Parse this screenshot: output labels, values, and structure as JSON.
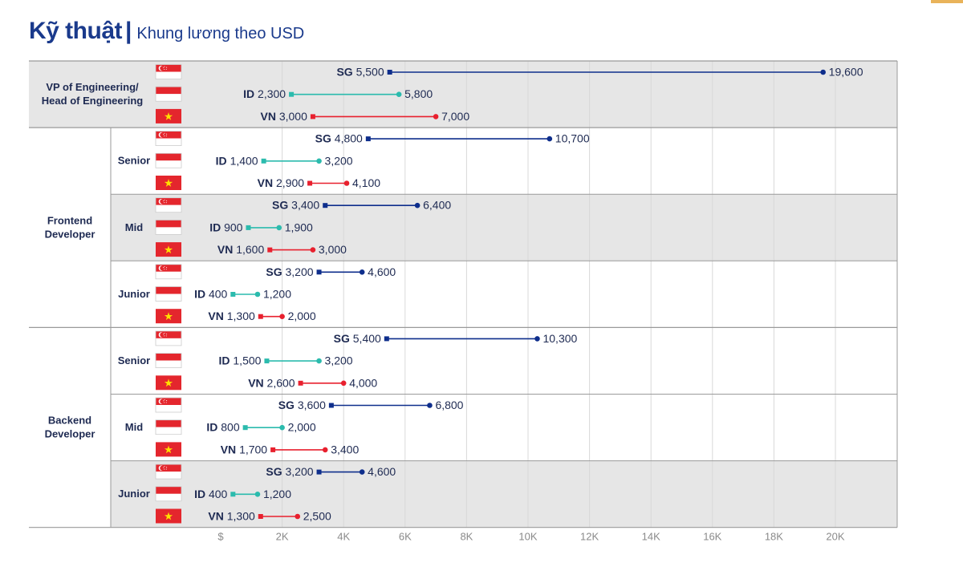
{
  "header": {
    "title": "Kỹ thuật",
    "separator": "|",
    "subtitle": "Khung lương theo USD"
  },
  "colors": {
    "SG": "#0e2e8c",
    "ID": "#2bbbad",
    "VN": "#e8202e",
    "band": "#e6e6e6",
    "grid": "#d8d8d8",
    "border": "#9a9a9a",
    "text": "#1e2a52",
    "axis": "#8a8a8a"
  },
  "chart_data": {
    "type": "range-bar",
    "title": "Kỹ thuật | Khung lương theo USD",
    "xlim": [
      0,
      22000
    ],
    "xticks": [
      {
        "value": 0,
        "label": "$"
      },
      {
        "value": 2000,
        "label": "2K"
      },
      {
        "value": 4000,
        "label": "4K"
      },
      {
        "value": 6000,
        "label": "6K"
      },
      {
        "value": 8000,
        "label": "8K"
      },
      {
        "value": 10000,
        "label": "10K"
      },
      {
        "value": 12000,
        "label": "12K"
      },
      {
        "value": 14000,
        "label": "14K"
      },
      {
        "value": 16000,
        "label": "16K"
      },
      {
        "value": 18000,
        "label": "18K"
      },
      {
        "value": 20000,
        "label": "20K"
      }
    ],
    "roles": [
      {
        "name": "VP of Engineering/ Head of Engineering",
        "name_lines": [
          "VP of Engineering/",
          "Head of Engineering"
        ],
        "levels": [
          {
            "level": "",
            "shaded": true,
            "rows": [
              {
                "country": "SG",
                "min": 5500,
                "max": 19600,
                "min_label": "5,500",
                "max_label": "19,600"
              },
              {
                "country": "ID",
                "min": 2300,
                "max": 5800,
                "min_label": "2,300",
                "max_label": "5,800"
              },
              {
                "country": "VN",
                "min": 3000,
                "max": 7000,
                "min_label": "3,000",
                "max_label": "7,000"
              }
            ]
          }
        ]
      },
      {
        "name": "Frontend Developer",
        "name_lines": [
          "Frontend",
          "Developer"
        ],
        "levels": [
          {
            "level": "Senior",
            "shaded": false,
            "rows": [
              {
                "country": "SG",
                "min": 4800,
                "max": 10700,
                "min_label": "4,800",
                "max_label": "10,700"
              },
              {
                "country": "ID",
                "min": 1400,
                "max": 3200,
                "min_label": "1,400",
                "max_label": "3,200"
              },
              {
                "country": "VN",
                "min": 2900,
                "max": 4100,
                "min_label": "2,900",
                "max_label": "4,100"
              }
            ]
          },
          {
            "level": "Mid",
            "shaded": true,
            "rows": [
              {
                "country": "SG",
                "min": 3400,
                "max": 6400,
                "min_label": "3,400",
                "max_label": "6,400"
              },
              {
                "country": "ID",
                "min": 900,
                "max": 1900,
                "min_label": "900",
                "max_label": "1,900"
              },
              {
                "country": "VN",
                "min": 1600,
                "max": 3000,
                "min_label": "1,600",
                "max_label": "3,000"
              }
            ]
          },
          {
            "level": "Junior",
            "shaded": false,
            "rows": [
              {
                "country": "SG",
                "min": 3200,
                "max": 4600,
                "min_label": "3,200",
                "max_label": "4,600"
              },
              {
                "country": "ID",
                "min": 400,
                "max": 1200,
                "min_label": "400",
                "max_label": "1,200"
              },
              {
                "country": "VN",
                "min": 1300,
                "max": 2000,
                "min_label": "1,300",
                "max_label": "2,000"
              }
            ]
          }
        ]
      },
      {
        "name": "Backend Developer",
        "name_lines": [
          "Backend",
          "Developer"
        ],
        "levels": [
          {
            "level": "Senior",
            "shaded": false,
            "rows": [
              {
                "country": "SG",
                "min": 5400,
                "max": 10300,
                "min_label": "5,400",
                "max_label": "10,300"
              },
              {
                "country": "ID",
                "min": 1500,
                "max": 3200,
                "min_label": "1,500",
                "max_label": "3,200"
              },
              {
                "country": "VN",
                "min": 2600,
                "max": 4000,
                "min_label": "2,600",
                "max_label": "4,000"
              }
            ]
          },
          {
            "level": "Mid",
            "shaded": false,
            "rows": [
              {
                "country": "SG",
                "min": 3600,
                "max": 6800,
                "min_label": "3,600",
                "max_label": "6,800"
              },
              {
                "country": "ID",
                "min": 800,
                "max": 2000,
                "min_label": "800",
                "max_label": "2,000"
              },
              {
                "country": "VN",
                "min": 1700,
                "max": 3400,
                "min_label": "1,700",
                "max_label": "3,400"
              }
            ]
          },
          {
            "level": "Junior",
            "shaded": true,
            "rows": [
              {
                "country": "SG",
                "min": 3200,
                "max": 4600,
                "min_label": "3,200",
                "max_label": "4,600"
              },
              {
                "country": "ID",
                "min": 400,
                "max": 1200,
                "min_label": "400",
                "max_label": "1,200"
              },
              {
                "country": "VN",
                "min": 1300,
                "max": 2500,
                "min_label": "1,300",
                "max_label": "2,500"
              }
            ]
          }
        ]
      }
    ]
  }
}
